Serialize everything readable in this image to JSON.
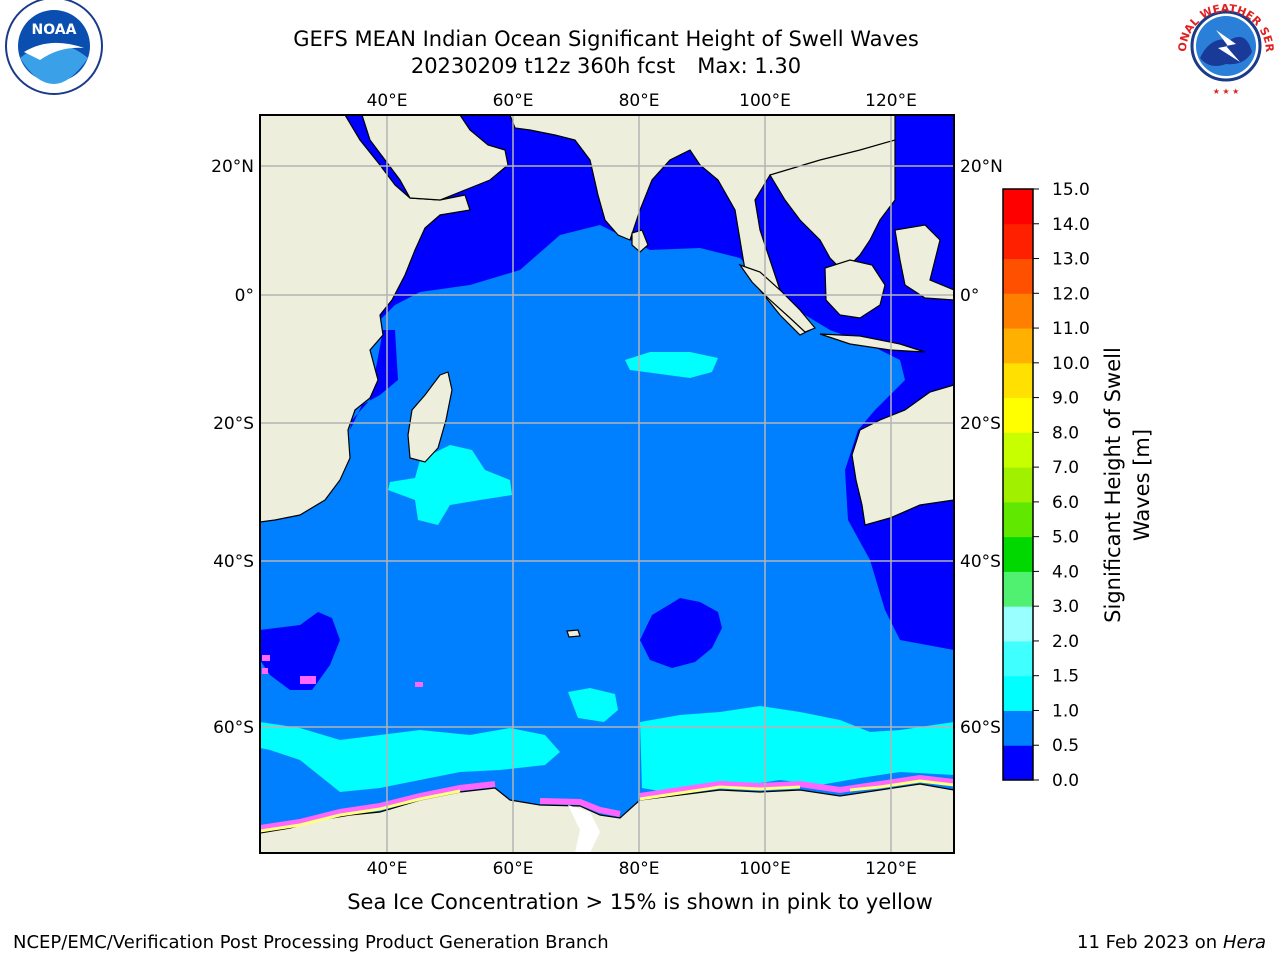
{
  "title_line1": "GEFS MEAN Indian Ocean Significant Height of Swell Waves",
  "title_run": "20230209 t12z 360h fcst",
  "title_max": "Max: 1.30",
  "caption": "Sea Ice Concentration > 15% is shown in pink to yellow",
  "footer_left": "NCEP/EMC/Verification Post Processing Product Generation Branch",
  "footer_date": "11 Feb 2023 on",
  "footer_host": "Hera",
  "logo_left": "NOAA",
  "logo_right_text": "NATIONAL WEATHER SERVICE",
  "colorbar": {
    "label_line1": "Significant Height of Swell",
    "label_line2": "Waves [m]",
    "ticks": [
      "0.0",
      "0.5",
      "1.0",
      "1.5",
      "2.0",
      "3.0",
      "4.0",
      "5.0",
      "6.0",
      "7.0",
      "8.0",
      "9.0",
      "10.0",
      "11.0",
      "12.0",
      "13.0",
      "14.0",
      "15.0"
    ],
    "colors": [
      "#0000ff",
      "#0080ff",
      "#00ffff",
      "#40ffff",
      "#99ffff",
      "#50f070",
      "#00d800",
      "#60e800",
      "#a0f000",
      "#c8ff00",
      "#ffff00",
      "#ffe000",
      "#ffb000",
      "#ff8000",
      "#ff5000",
      "#ff2000",
      "#ff0000"
    ]
  },
  "map": {
    "lon_range": [
      20,
      130
    ],
    "lat_range": [
      -75,
      27
    ],
    "lon_ticks": [
      40,
      60,
      80,
      100,
      120
    ],
    "lat_ticks": [
      20,
      0,
      -20,
      -40,
      -60
    ],
    "lon_labels": [
      "40°E",
      "60°E",
      "80°E",
      "100°E",
      "120°E"
    ],
    "lat_labels": [
      "20°N",
      "0°",
      "20°S",
      "40°S",
      "60°S"
    ],
    "colors": {
      "land": "#eeeedc",
      "ocean_0_05": "#0000ff",
      "ocean_05_10": "#0080ff",
      "ocean_10_15": "#00ffff",
      "ocean_15_20": "#40ffff",
      "grid": "#b4b4b4",
      "ice_pink": "#ff66ff",
      "ice_yellow": "#ffff80"
    }
  }
}
